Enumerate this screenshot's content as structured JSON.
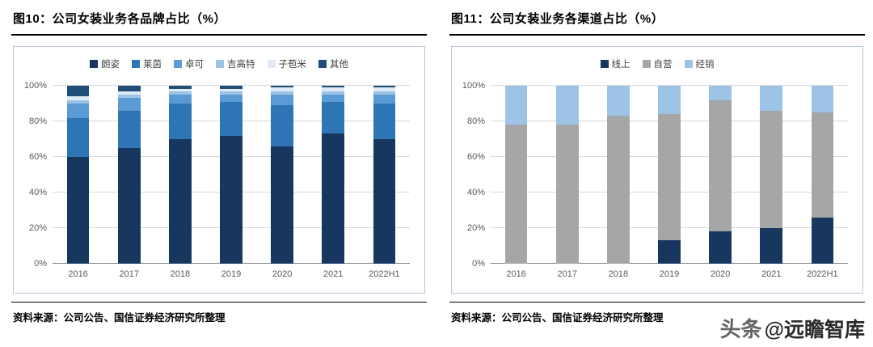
{
  "panels": [
    {
      "title": "图10：公司女装业务各品牌占比（%）",
      "source": "资料来源：公司公告、国信证券经济研究所整理"
    },
    {
      "title": "图11：公司女装业务各渠道占比（%）",
      "source": "资料来源：公司公告、国信证券经济研究所整理"
    }
  ],
  "watermark": {
    "prefix": "头条",
    "handle": "@远瞻智库"
  },
  "chart_data": [
    {
      "type": "bar",
      "stacked": true,
      "title": "公司女装业务各品牌占比（%）",
      "categories": [
        "2016",
        "2017",
        "2018",
        "2019",
        "2020",
        "2021",
        "2022H1"
      ],
      "series": [
        {
          "name": "朗姿",
          "color": "#17375E",
          "values": [
            60,
            65,
            70,
            72,
            66,
            73,
            70
          ]
        },
        {
          "name": "莱茵",
          "color": "#2E75B6",
          "values": [
            22,
            21,
            20,
            19,
            23,
            18,
            20
          ]
        },
        {
          "name": "卓可",
          "color": "#5B9BD5",
          "values": [
            8,
            7,
            5,
            4,
            6,
            4,
            5
          ]
        },
        {
          "name": "吉高特",
          "color": "#9DC3E6",
          "values": [
            2,
            2,
            2,
            2,
            2,
            2,
            2
          ]
        },
        {
          "name": "子苞米",
          "color": "#DEEBF7",
          "values": [
            2,
            2,
            1,
            1,
            2,
            2,
            2
          ]
        },
        {
          "name": "其他",
          "color": "#1F4E79",
          "values": [
            6,
            3,
            2,
            2,
            1,
            1,
            1
          ]
        }
      ],
      "xlabel": "",
      "ylabel": "",
      "ylim": [
        0,
        100
      ],
      "yticks": [
        0,
        20,
        40,
        60,
        80,
        100
      ],
      "ytick_suffix": "%",
      "grid": true,
      "legend_position": "top"
    },
    {
      "type": "bar",
      "stacked": true,
      "title": "公司女装业务各渠道占比（%）",
      "categories": [
        "2016",
        "2017",
        "2018",
        "2019",
        "2020",
        "2021",
        "2022H1"
      ],
      "series": [
        {
          "name": "线上",
          "color": "#17375E",
          "values": [
            0,
            0,
            0,
            13,
            18,
            20,
            26
          ]
        },
        {
          "name": "自营",
          "color": "#A6A6A6",
          "values": [
            78,
            78,
            83,
            71,
            74,
            66,
            59
          ]
        },
        {
          "name": "经销",
          "color": "#9DC3E6",
          "values": [
            22,
            22,
            17,
            16,
            8,
            14,
            15
          ]
        }
      ],
      "xlabel": "",
      "ylabel": "",
      "ylim": [
        0,
        100
      ],
      "yticks": [
        0,
        20,
        40,
        60,
        80,
        100
      ],
      "ytick_suffix": "%",
      "grid": true,
      "legend_position": "top"
    }
  ]
}
